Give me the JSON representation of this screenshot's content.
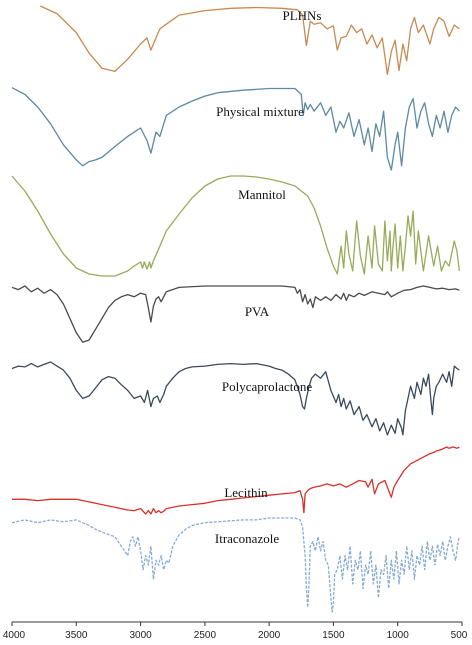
{
  "chart_data": {
    "type": "line",
    "title": "",
    "xlabel": "",
    "ylabel": "",
    "x_reversed": true,
    "xlim": [
      4000,
      500
    ],
    "x_ticks": [
      4000,
      3500,
      3000,
      2500,
      2000,
      1500,
      1000,
      500
    ],
    "y_axis_visible": false,
    "series": [
      {
        "name": "PLHNs",
        "color": "#c98a52",
        "x": [
          3780,
          3650,
          3500,
          3400,
          3300,
          3200,
          3100,
          3000,
          2950,
          2920,
          2880,
          2850,
          2800,
          2700,
          2500,
          2300,
          2100,
          1900,
          1780,
          1740,
          1710,
          1680,
          1650,
          1600,
          1550,
          1500,
          1470,
          1440,
          1400,
          1360,
          1320,
          1280,
          1240,
          1200,
          1160,
          1120,
          1080,
          1050,
          1020,
          990,
          960,
          930,
          900,
          870,
          840,
          800,
          750,
          720,
          680,
          640,
          600,
          560,
          520
        ],
        "y": [
          0.0,
          0.1,
          0.35,
          0.62,
          0.82,
          0.86,
          0.7,
          0.5,
          0.42,
          0.58,
          0.42,
          0.3,
          0.24,
          0.12,
          0.06,
          0.03,
          0.02,
          0.03,
          0.05,
          0.12,
          0.52,
          0.2,
          0.24,
          0.22,
          0.3,
          0.26,
          0.58,
          0.42,
          0.4,
          0.25,
          0.35,
          0.3,
          0.5,
          0.38,
          0.55,
          0.42,
          0.9,
          0.6,
          0.45,
          0.85,
          0.5,
          0.72,
          0.3,
          0.15,
          0.35,
          0.25,
          0.5,
          0.3,
          0.15,
          0.2,
          0.4,
          0.25,
          0.3
        ]
      },
      {
        "name": "Physical mixture",
        "color": "#5b89a6",
        "x": [
          4000,
          3900,
          3800,
          3700,
          3600,
          3500,
          3450,
          3400,
          3350,
          3300,
          3200,
          3100,
          3050,
          3000,
          2950,
          2920,
          2880,
          2850,
          2800,
          2700,
          2600,
          2500,
          2400,
          2200,
          2000,
          1800,
          1750,
          1735,
          1720,
          1700,
          1680,
          1650,
          1600,
          1560,
          1520,
          1480,
          1450,
          1420,
          1380,
          1340,
          1300,
          1260,
          1230,
          1200,
          1170,
          1140,
          1110,
          1080,
          1050,
          1020,
          1000,
          970,
          940,
          910,
          880,
          850,
          820,
          790,
          760,
          730,
          700,
          670,
          640,
          610,
          580,
          550,
          520
        ],
        "y": [
          0.02,
          0.1,
          0.25,
          0.45,
          0.7,
          0.88,
          0.95,
          0.9,
          0.88,
          0.85,
          0.72,
          0.6,
          0.55,
          0.5,
          0.65,
          0.8,
          0.55,
          0.6,
          0.35,
          0.25,
          0.18,
          0.12,
          0.08,
          0.05,
          0.03,
          0.03,
          0.1,
          0.35,
          0.2,
          0.28,
          0.22,
          0.3,
          0.2,
          0.35,
          0.25,
          0.55,
          0.42,
          0.5,
          0.32,
          0.6,
          0.4,
          0.7,
          0.5,
          0.78,
          0.45,
          0.6,
          0.3,
          0.85,
          1.0,
          0.7,
          0.55,
          0.95,
          0.5,
          0.25,
          0.15,
          0.5,
          0.3,
          0.2,
          0.45,
          0.6,
          0.35,
          0.5,
          0.3,
          0.55,
          0.35,
          0.25,
          0.3
        ]
      },
      {
        "name": "Mannitol",
        "color": "#97ab5a",
        "x": [
          4000,
          3900,
          3800,
          3700,
          3600,
          3500,
          3400,
          3300,
          3200,
          3100,
          3050,
          3000,
          2985,
          2970,
          2950,
          2930,
          2920,
          2900,
          2850,
          2800,
          2700,
          2600,
          2500,
          2400,
          2300,
          2200,
          2100,
          2000,
          1900,
          1800,
          1700,
          1650,
          1600,
          1550,
          1500,
          1470,
          1440,
          1420,
          1400,
          1380,
          1350,
          1320,
          1290,
          1260,
          1230,
          1200,
          1180,
          1150,
          1120,
          1100,
          1080,
          1060,
          1050,
          1040,
          1020,
          1000,
          980,
          960,
          940,
          920,
          900,
          880,
          860,
          840,
          800,
          760,
          720,
          690,
          660,
          630,
          600,
          560,
          540,
          520
        ],
        "y": [
          0.0,
          0.15,
          0.35,
          0.58,
          0.78,
          0.92,
          0.98,
          1.0,
          1.0,
          0.95,
          0.9,
          0.86,
          0.92,
          0.86,
          0.93,
          0.86,
          0.92,
          0.85,
          0.7,
          0.55,
          0.38,
          0.22,
          0.1,
          0.03,
          0.0,
          0.0,
          0.01,
          0.03,
          0.06,
          0.1,
          0.2,
          0.32,
          0.5,
          0.72,
          0.9,
          0.98,
          0.7,
          0.92,
          0.55,
          0.78,
          0.95,
          0.45,
          0.8,
          0.98,
          0.6,
          0.92,
          0.5,
          0.88,
          0.95,
          0.45,
          0.85,
          0.55,
          0.95,
          0.75,
          0.48,
          0.92,
          0.6,
          0.95,
          0.7,
          0.4,
          0.6,
          0.35,
          0.88,
          0.55,
          0.95,
          0.6,
          0.9,
          0.7,
          0.95,
          0.85,
          0.9,
          0.65,
          0.75,
          0.95
        ]
      },
      {
        "name": "PVA",
        "color": "#4a4a4a",
        "x": [
          4000,
          3950,
          3900,
          3850,
          3800,
          3750,
          3700,
          3650,
          3600,
          3550,
          3500,
          3450,
          3400,
          3350,
          3300,
          3250,
          3200,
          3150,
          3100,
          3050,
          3000,
          2960,
          2940,
          2920,
          2900,
          2880,
          2860,
          2840,
          2800,
          2700,
          2500,
          2300,
          2100,
          1900,
          1800,
          1780,
          1760,
          1740,
          1720,
          1700,
          1680,
          1660,
          1640,
          1600,
          1560,
          1520,
          1480,
          1440,
          1420,
          1400,
          1380,
          1340,
          1300,
          1260,
          1200,
          1150,
          1100,
          1080,
          1050,
          1000,
          950,
          900,
          850,
          800,
          750,
          700,
          650,
          600,
          550,
          520
        ],
        "y": [
          0.02,
          0.05,
          0.0,
          0.08,
          0.03,
          0.1,
          0.05,
          0.12,
          0.25,
          0.45,
          0.65,
          0.78,
          0.75,
          0.6,
          0.45,
          0.3,
          0.2,
          0.15,
          0.12,
          0.15,
          0.1,
          0.12,
          0.3,
          0.5,
          0.28,
          0.18,
          0.15,
          0.22,
          0.08,
          0.02,
          0.0,
          0.0,
          0.0,
          0.0,
          0.02,
          0.1,
          0.05,
          0.22,
          0.12,
          0.25,
          0.18,
          0.3,
          0.15,
          0.2,
          0.15,
          0.2,
          0.12,
          0.18,
          0.1,
          0.2,
          0.12,
          0.15,
          0.1,
          0.13,
          0.08,
          0.1,
          0.12,
          0.08,
          0.15,
          0.1,
          0.06,
          0.05,
          0.02,
          0.0,
          0.02,
          0.04,
          0.03,
          0.05,
          0.04,
          0.06
        ]
      },
      {
        "name": "Polycaprolactone",
        "color": "#3a4a5c",
        "x": [
          4000,
          3950,
          3900,
          3850,
          3800,
          3750,
          3700,
          3650,
          3600,
          3550,
          3500,
          3450,
          3400,
          3350,
          3300,
          3250,
          3200,
          3150,
          3100,
          3050,
          3000,
          2970,
          2945,
          2920,
          2900,
          2870,
          2850,
          2820,
          2800,
          2750,
          2700,
          2650,
          2600,
          2500,
          2400,
          2300,
          2200,
          2100,
          2000,
          1950,
          1900,
          1850,
          1800,
          1760,
          1740,
          1725,
          1710,
          1690,
          1670,
          1640,
          1600,
          1560,
          1520,
          1480,
          1460,
          1440,
          1420,
          1400,
          1370,
          1340,
          1300,
          1270,
          1240,
          1200,
          1170,
          1140,
          1110,
          1080,
          1050,
          1020,
          1000,
          970,
          960,
          940,
          920,
          900,
          870,
          850,
          820,
          800,
          780,
          760,
          740,
          730,
          720,
          700,
          680,
          650,
          620,
          600,
          580,
          560,
          540,
          520
        ],
        "y": [
          0.08,
          0.05,
          0.06,
          0.02,
          0.06,
          0.03,
          0.0,
          0.05,
          0.1,
          0.2,
          0.35,
          0.45,
          0.42,
          0.32,
          0.22,
          0.18,
          0.2,
          0.28,
          0.35,
          0.45,
          0.42,
          0.5,
          0.35,
          0.55,
          0.45,
          0.42,
          0.5,
          0.4,
          0.3,
          0.2,
          0.12,
          0.08,
          0.06,
          0.05,
          0.03,
          0.02,
          0.03,
          0.02,
          0.05,
          0.08,
          0.1,
          0.15,
          0.22,
          0.4,
          0.55,
          0.58,
          0.45,
          0.3,
          0.2,
          0.15,
          0.2,
          0.12,
          0.35,
          0.5,
          0.4,
          0.55,
          0.45,
          0.58,
          0.48,
          0.65,
          0.55,
          0.72,
          0.65,
          0.8,
          0.7,
          0.85,
          0.75,
          0.9,
          0.78,
          0.88,
          0.7,
          0.82,
          0.9,
          0.6,
          0.45,
          0.3,
          0.45,
          0.25,
          0.4,
          0.2,
          0.3,
          0.15,
          0.5,
          0.65,
          0.45,
          0.3,
          0.25,
          0.15,
          0.25,
          0.12,
          0.3,
          0.05,
          0.08,
          0.1
        ]
      },
      {
        "name": "Lecithin",
        "color": "#d9312a",
        "x": [
          4000,
          3900,
          3800,
          3700,
          3600,
          3500,
          3450,
          3400,
          3300,
          3200,
          3100,
          3050,
          3000,
          2960,
          2940,
          2920,
          2900,
          2880,
          2860,
          2840,
          2820,
          2800,
          2700,
          2600,
          2500,
          2400,
          2300,
          2200,
          2100,
          2000,
          1900,
          1800,
          1760,
          1740,
          1730,
          1720,
          1700,
          1680,
          1650,
          1600,
          1550,
          1500,
          1450,
          1400,
          1350,
          1300,
          1250,
          1230,
          1200,
          1180,
          1150,
          1100,
          1070,
          1050,
          1030,
          1000,
          950,
          900,
          850,
          800,
          750,
          720,
          700,
          680,
          650,
          620,
          600,
          570,
          540,
          520
        ],
        "y": [
          0.78,
          0.78,
          0.8,
          0.78,
          0.78,
          0.78,
          0.8,
          0.82,
          0.86,
          0.9,
          0.94,
          0.95,
          0.92,
          1.0,
          0.95,
          1.0,
          0.92,
          0.98,
          0.95,
          0.98,
          0.96,
          0.92,
          0.88,
          0.86,
          0.84,
          0.8,
          0.78,
          0.76,
          0.74,
          0.72,
          0.7,
          0.68,
          0.65,
          0.78,
          0.98,
          0.7,
          0.65,
          0.62,
          0.6,
          0.58,
          0.55,
          0.58,
          0.55,
          0.6,
          0.55,
          0.5,
          0.52,
          0.6,
          0.48,
          0.7,
          0.55,
          0.5,
          0.65,
          0.75,
          0.6,
          0.5,
          0.35,
          0.25,
          0.2,
          0.15,
          0.1,
          0.08,
          0.06,
          0.05,
          0.03,
          0.0,
          0.02,
          0.0,
          0.02,
          0.0
        ]
      },
      {
        "name": "Itraconazole",
        "color": "#86aad4",
        "x": [
          4000,
          3900,
          3800,
          3700,
          3600,
          3500,
          3450,
          3400,
          3350,
          3300,
          3200,
          3150,
          3100,
          3080,
          3060,
          3040,
          3020,
          3000,
          2980,
          2960,
          2940,
          2920,
          2900,
          2880,
          2860,
          2840,
          2820,
          2800,
          2780,
          2750,
          2700,
          2650,
          2600,
          2500,
          2400,
          2300,
          2200,
          2100,
          2000,
          1900,
          1800,
          1760,
          1740,
          1720,
          1710,
          1700,
          1690,
          1680,
          1660,
          1640,
          1620,
          1600,
          1580,
          1560,
          1540,
          1520,
          1510,
          1500,
          1490,
          1470,
          1450,
          1430,
          1410,
          1390,
          1370,
          1350,
          1330,
          1310,
          1290,
          1270,
          1250,
          1230,
          1210,
          1190,
          1170,
          1150,
          1130,
          1110,
          1090,
          1070,
          1050,
          1030,
          1010,
          990,
          970,
          950,
          930,
          910,
          890,
          870,
          850,
          830,
          810,
          790,
          770,
          750,
          730,
          710,
          690,
          670,
          650,
          630,
          610,
          590,
          570,
          550,
          530,
          520
        ],
        "y": [
          0.05,
          0.02,
          0.05,
          0.02,
          0.04,
          0.02,
          0.05,
          0.08,
          0.12,
          0.15,
          0.2,
          0.3,
          0.4,
          0.25,
          0.2,
          0.3,
          0.2,
          0.35,
          0.55,
          0.4,
          0.5,
          0.3,
          0.65,
          0.45,
          0.5,
          0.4,
          0.55,
          0.45,
          0.48,
          0.3,
          0.18,
          0.12,
          0.08,
          0.05,
          0.04,
          0.03,
          0.02,
          0.02,
          0.0,
          0.0,
          0.0,
          0.02,
          0.1,
          0.4,
          0.75,
          0.95,
          0.7,
          0.3,
          0.25,
          0.35,
          0.2,
          0.35,
          0.25,
          0.45,
          0.5,
          0.85,
          1.0,
          0.9,
          0.6,
          0.55,
          0.4,
          0.65,
          0.4,
          0.55,
          0.3,
          0.7,
          0.45,
          0.55,
          0.35,
          0.75,
          0.5,
          0.6,
          0.35,
          0.7,
          0.5,
          0.85,
          0.55,
          0.6,
          0.4,
          0.75,
          0.45,
          0.65,
          0.35,
          0.7,
          0.45,
          0.6,
          0.3,
          0.55,
          0.35,
          0.65,
          0.4,
          0.5,
          0.3,
          0.55,
          0.25,
          0.45,
          0.3,
          0.5,
          0.28,
          0.4,
          0.25,
          0.45,
          0.3,
          0.2,
          0.35,
          0.45,
          0.25,
          0.2
        ]
      }
    ]
  },
  "labels": {
    "plhns": "PLHNs",
    "physical_mixture": "Physical mixture",
    "mannitol": "Mannitol",
    "pva": "PVA",
    "polycaprolactone": "Polycaprolactone",
    "lecithin": "Lecithin",
    "itraconazole": "Itraconazole"
  },
  "ticks": {
    "t4000": "4000",
    "t3500": "3500",
    "t3000": "3000",
    "t2500": "2500",
    "t2000": "2000",
    "t1500": "1500",
    "t1000": "1000",
    "t500": "500"
  }
}
